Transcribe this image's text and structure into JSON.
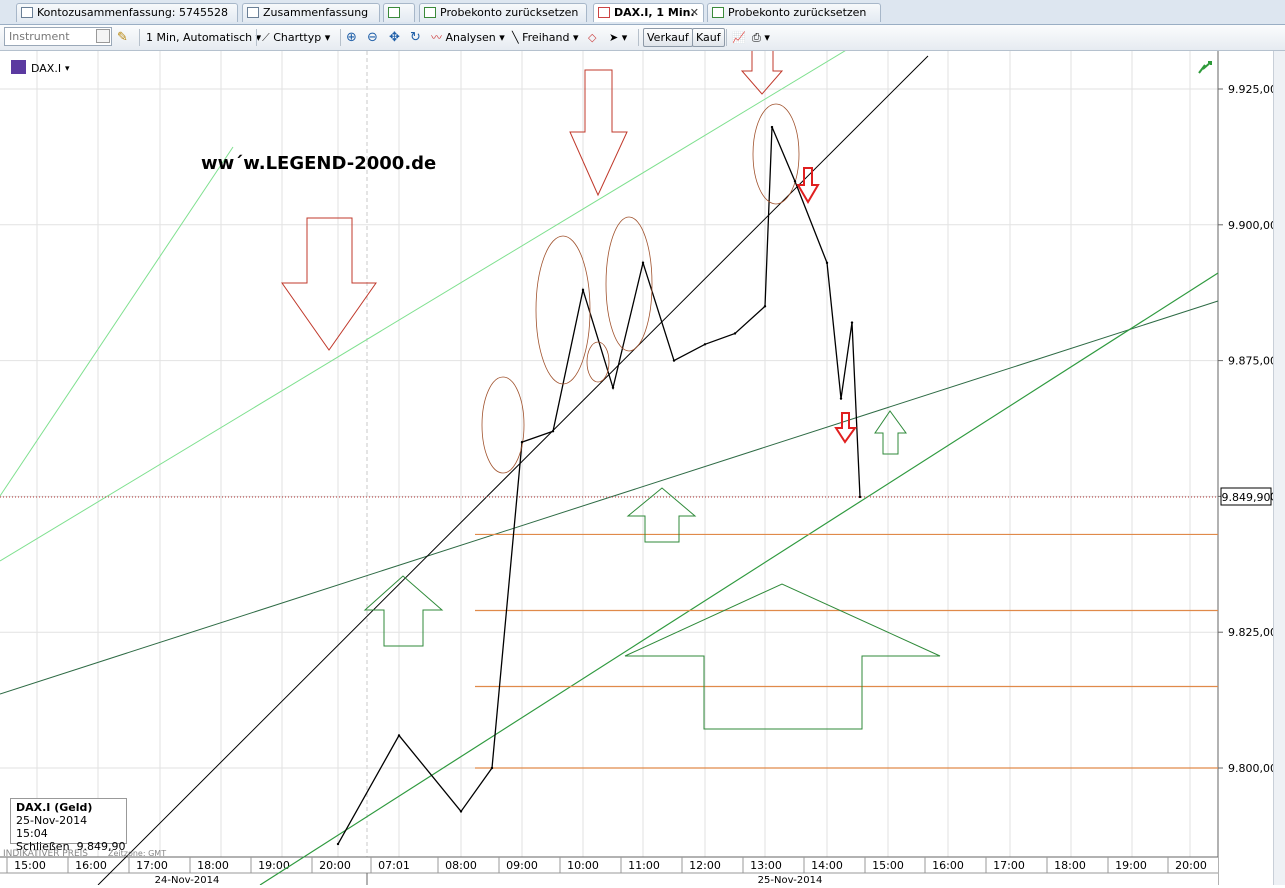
{
  "tabs": [
    {
      "label": "Kontozusammenfassung: 5745528"
    },
    {
      "label": "Zusammenfassung"
    },
    {
      "label": ""
    },
    {
      "label": "Probekonto zurücksetzen"
    },
    {
      "label": "DAX.I, 1 Min.",
      "close": "✕"
    },
    {
      "label": "Probekonto zurücksetzen"
    }
  ],
  "toolbar": {
    "instrument_placeholder": "Instrument",
    "interval": "1 Min,  Automatisch",
    "charttype": "Charttyp",
    "analysen": "Analysen",
    "freihand": "Freihand",
    "verkauf": "Verkauf",
    "kauf": "Kauf"
  },
  "chart": {
    "symbol": "DAX.I",
    "watermark": "ww´w.LEGEND-2000.de",
    "current_price_label": "9.849,90",
    "footer_left": "INDIKATIVER PREIS",
    "footer_tz": "Zeitzone: GMT",
    "date_left": "24-Nov-2014",
    "date_right": "25-Nov-2014",
    "info": {
      "title": "DAX.I (Geld)",
      "datetime": "25-Nov-2014 15:04",
      "close_label": "Schließen",
      "close_value": "9.849,90"
    }
  },
  "chart_data": {
    "type": "line",
    "series": [
      {
        "name": "DAX.I",
        "x": [
          "20:00",
          "07:01",
          "08:00",
          "08:30",
          "09:00",
          "09:30",
          "10:00",
          "10:30",
          "11:00",
          "11:30",
          "12:00",
          "12:30",
          "13:00",
          "13:15",
          "13:30",
          "14:00",
          "14:30",
          "14:45",
          "15:04"
        ],
        "values": [
          9786,
          9806,
          9792,
          9800,
          9860,
          9862,
          9888,
          9870,
          9893,
          9875,
          9878,
          9880,
          9885,
          9918,
          9908,
          9893,
          9868,
          9882,
          9849.9
        ]
      }
    ],
    "x_ticks": [
      "15:00",
      "16:00",
      "17:00",
      "18:00",
      "19:00",
      "20:00",
      "07:01",
      "08:00",
      "09:00",
      "10:00",
      "11:00",
      "12:00",
      "13:00",
      "14:00",
      "15:00",
      "16:00",
      "17:00",
      "18:00",
      "19:00",
      "20:00"
    ],
    "y_ticks": [
      "9.800,00",
      "9.825,00",
      "9.850,00",
      "9.875,00",
      "9.900,00",
      "9.925,00"
    ],
    "ylim": [
      9780,
      9930
    ],
    "grid": true,
    "horizontal_levels": [
      9849.9,
      9843,
      9829,
      9815,
      9800
    ]
  }
}
